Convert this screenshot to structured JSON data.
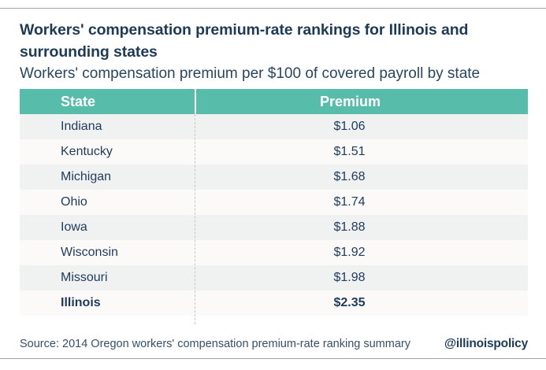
{
  "header": {
    "title": "Workers' compensation premium-rate rankings for Illinois and surrounding states",
    "subtitle": "Workers' compensation premium per $100 of covered payroll by state"
  },
  "table": {
    "columns": [
      "State",
      "Premium"
    ],
    "rows": [
      {
        "state": "Indiana",
        "premium": "$1.06"
      },
      {
        "state": "Kentucky",
        "premium": "$1.51"
      },
      {
        "state": "Michigan",
        "premium": "$1.68"
      },
      {
        "state": "Ohio",
        "premium": "$1.74"
      },
      {
        "state": "Iowa",
        "premium": "$1.88"
      },
      {
        "state": "Wisconsin",
        "premium": "$1.92"
      },
      {
        "state": "Missouri",
        "premium": "$1.98"
      },
      {
        "state": "Illinois",
        "premium": "$2.35"
      }
    ],
    "highlighted_row": "Illinois"
  },
  "footer": {
    "source": "Source: 2014 Oregon workers' compensation premium-rate ranking summary",
    "handle": "@illinoispolicy"
  },
  "colors": {
    "accent_teal": "#57BCA9",
    "text_navy": "#1D3A57",
    "row_gray": "#F0F1F1",
    "row_offwhite": "#FBFAF9",
    "hairline_gray": "#9EA3A5"
  },
  "chart_data": {
    "type": "table",
    "title": "Workers' compensation premium-rate rankings for Illinois and surrounding states",
    "subtitle": "Workers' compensation premium per $100 of covered payroll by state",
    "columns": [
      "State",
      "Premium"
    ],
    "categories": [
      "Indiana",
      "Kentucky",
      "Michigan",
      "Ohio",
      "Iowa",
      "Wisconsin",
      "Missouri",
      "Illinois"
    ],
    "values": [
      1.06,
      1.51,
      1.68,
      1.74,
      1.88,
      1.92,
      1.98,
      2.35
    ],
    "highlighted_category": "Illinois",
    "source": "Source: 2014 Oregon workers' compensation premium-rate ranking summary",
    "attribution": "@illinoispolicy"
  }
}
